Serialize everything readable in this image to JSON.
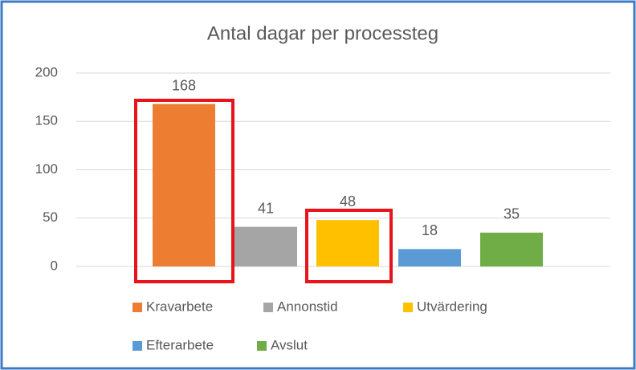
{
  "chart_data": {
    "type": "bar",
    "title": "Antal dagar per processteg",
    "categories": [
      "Kravarbete",
      "Annonstid",
      "Utvärdering",
      "Efterarbete",
      "Avslut"
    ],
    "values": [
      168,
      41,
      48,
      18,
      35
    ],
    "colors": [
      "#ed7d31",
      "#a5a5a5",
      "#ffc000",
      "#5b9bd5",
      "#70ad47"
    ],
    "ylim": [
      0,
      200
    ],
    "yticks": [
      0,
      50,
      100,
      150,
      200
    ],
    "grid": true,
    "legend": "bottom"
  }
}
